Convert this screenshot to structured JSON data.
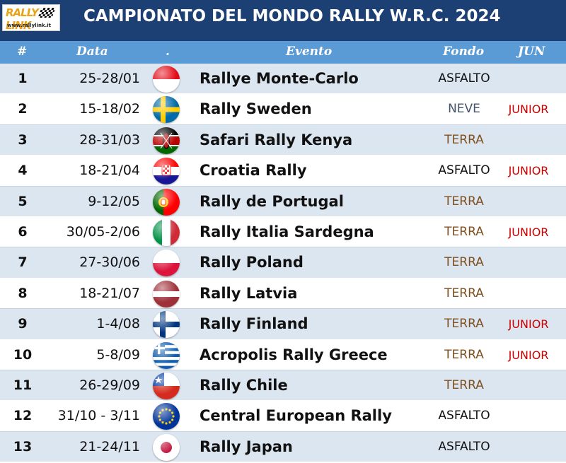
{
  "header": {
    "logo_text": "RALLY LINK",
    "logo_url": "www.rallylink.it",
    "title": "CAMPIONATO DEL MONDO RALLY W.R.C. 2024"
  },
  "columns": {
    "num": "#",
    "date": "Data",
    "flag": ".",
    "event": "Evento",
    "fondo": "Fondo",
    "jun": "JUN"
  },
  "colors": {
    "header_bg": "#1c3f74",
    "columns_bg": "#5b9bd5",
    "row_alt": "#dce6f1",
    "asfalto": "#111111",
    "neve": "#44546a",
    "terra": "#7f4f1f",
    "junior": "#cc0000"
  },
  "rows": [
    {
      "num": "1",
      "date": "25-28/01",
      "flag": "monaco-flag-icon",
      "event": "Rallye Monte-Carlo",
      "fondo": "ASFALTO",
      "fondo_type": "asfalto",
      "jun": ""
    },
    {
      "num": "2",
      "date": "15-18/02",
      "flag": "sweden-flag-icon",
      "event": "Rally Sweden",
      "fondo": "NEVE",
      "fondo_type": "neve",
      "jun": "JUNIOR"
    },
    {
      "num": "3",
      "date": "28-31/03",
      "flag": "kenya-flag-icon",
      "event": "Safari Rally Kenya",
      "fondo": "TERRA",
      "fondo_type": "terra",
      "jun": ""
    },
    {
      "num": "4",
      "date": "18-21/04",
      "flag": "croatia-flag-icon",
      "event": "Croatia Rally",
      "fondo": "ASFALTO",
      "fondo_type": "asfalto",
      "jun": "JUNIOR"
    },
    {
      "num": "5",
      "date": "9-12/05",
      "flag": "portugal-flag-icon",
      "event": "Rally de Portugal",
      "fondo": "TERRA",
      "fondo_type": "terra",
      "jun": ""
    },
    {
      "num": "6",
      "date": "30/05-2/06",
      "flag": "italy-flag-icon",
      "event": "Rally Italia Sardegna",
      "fondo": "TERRA",
      "fondo_type": "terra",
      "jun": "JUNIOR"
    },
    {
      "num": "7",
      "date": "27-30/06",
      "flag": "poland-flag-icon",
      "event": "Rally Poland",
      "fondo": "TERRA",
      "fondo_type": "terra",
      "jun": ""
    },
    {
      "num": "8",
      "date": "18-21/07",
      "flag": "latvia-flag-icon",
      "event": "Rally Latvia",
      "fondo": "TERRA",
      "fondo_type": "terra",
      "jun": ""
    },
    {
      "num": "9",
      "date": "1-4/08",
      "flag": "finland-flag-icon",
      "event": "Rally Finland",
      "fondo": "TERRA",
      "fondo_type": "terra",
      "jun": "JUNIOR"
    },
    {
      "num": "10",
      "date": "5-8/09",
      "flag": "greece-flag-icon",
      "event": "Acropolis Rally Greece",
      "fondo": "TERRA",
      "fondo_type": "terra",
      "jun": "JUNIOR"
    },
    {
      "num": "11",
      "date": "26-29/09",
      "flag": "chile-flag-icon",
      "event": "Rally Chile",
      "fondo": "TERRA",
      "fondo_type": "terra",
      "jun": ""
    },
    {
      "num": "12",
      "date": "31/10 - 3/11",
      "flag": "europe-flag-icon",
      "event": "Central European Rally",
      "fondo": "ASFALTO",
      "fondo_type": "asfalto",
      "jun": ""
    },
    {
      "num": "13",
      "date": "21-24/11",
      "flag": "japan-flag-icon",
      "event": "Rally Japan",
      "fondo": "ASFALTO",
      "fondo_type": "asfalto",
      "jun": ""
    }
  ]
}
